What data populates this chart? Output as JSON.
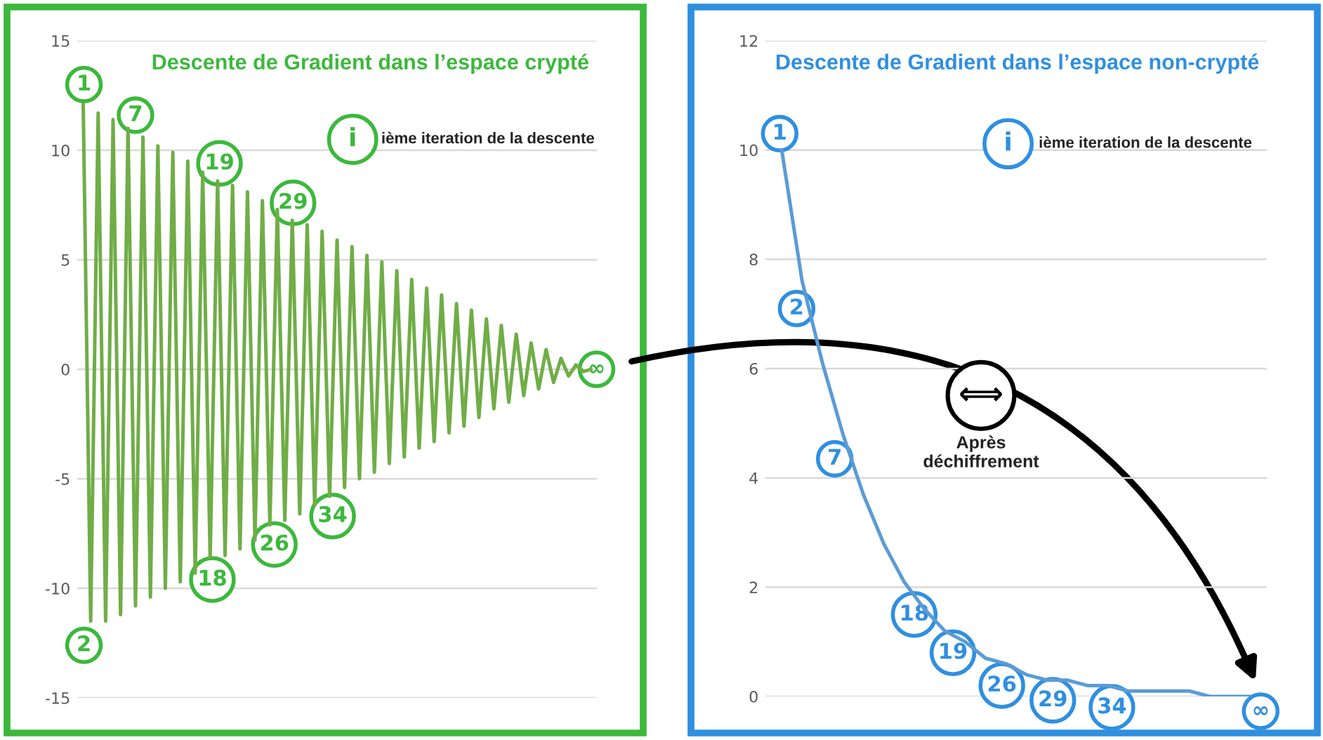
{
  "chart_data": [
    {
      "type": "line",
      "title": "Descente de Gradient dans l’espace crypté",
      "categories": [
        null,
        null,
        null,
        null,
        null,
        null,
        null,
        null,
        null,
        null,
        null,
        null,
        null,
        null,
        null,
        null,
        null,
        null,
        null,
        null,
        null,
        null,
        null,
        null,
        null,
        null,
        null,
        null,
        null,
        null,
        null,
        null,
        null,
        null,
        null,
        null,
        null,
        null,
        null,
        null,
        null,
        null,
        null,
        null,
        null,
        null,
        null,
        null,
        null,
        null,
        null,
        null,
        null,
        null,
        null,
        null,
        null,
        null,
        null,
        null,
        null,
        null,
        null,
        null,
        null,
        null,
        null,
        null,
        null
      ],
      "series": [
        {
          "color": "#70ad47",
          "values": [
            12.1,
            -11.5,
            11.7,
            -11.5,
            11.4,
            -11.2,
            11.0,
            -10.8,
            10.6,
            -10.4,
            10.2,
            -10.0,
            9.9,
            -9.7,
            9.5,
            -9.3,
            9.0,
            -8.6,
            8.6,
            -8.5,
            8.4,
            -8.2,
            8.1,
            -7.8,
            7.7,
            -7.1,
            7.3,
            -6.9,
            6.8,
            -6.6,
            6.6,
            -6.2,
            6.3,
            -5.8,
            5.9,
            -5.4,
            5.6,
            -5.0,
            5.2,
            -4.7,
            4.9,
            -4.3,
            4.5,
            -4.0,
            4.1,
            -3.6,
            3.7,
            -3.3,
            3.4,
            -2.9,
            3.0,
            -2.6,
            2.7,
            -2.2,
            2.3,
            -1.8,
            2.0,
            -1.5,
            1.6,
            -1.2,
            1.2,
            -0.9,
            0.9,
            -0.6,
            0.5,
            -0.3,
            0.2,
            -0.1,
            0
          ]
        }
      ],
      "ylim": [
        -15,
        15
      ],
      "yticks": [
        -15,
        -10,
        -5,
        0,
        5,
        10,
        15
      ],
      "grid": "y",
      "tick_labels": "y",
      "marker": "none",
      "line_style": "solid",
      "legend": false,
      "annotations": [
        "ième iteration de la descente",
        "i",
        "1",
        "2",
        "7",
        "18",
        "19",
        "26",
        "29",
        "34",
        "∞"
      ]
    },
    {
      "type": "line",
      "title": "Descente de Gradient dans l’espace non-crypté",
      "categories": [
        null,
        null,
        null,
        null,
        null,
        null,
        null,
        null,
        null,
        null,
        null,
        null,
        null,
        null,
        null,
        null,
        null,
        null,
        null,
        null,
        null,
        null,
        null,
        null
      ],
      "series": [
        {
          "color": "#5b9bd5",
          "values": [
            10,
            7.6,
            6.1,
            4.8,
            3.7,
            2.8,
            2.1,
            1.6,
            1.2,
            1.0,
            0.7,
            0.6,
            0.4,
            0.3,
            0.3,
            0.2,
            0.2,
            0.1,
            0.1,
            0.1,
            0.1,
            0,
            0,
            0
          ]
        }
      ],
      "ylim": [
        0,
        12
      ],
      "yticks": [
        0,
        2,
        4,
        6,
        8,
        10,
        12
      ],
      "grid": "y",
      "tick_labels": "y",
      "marker": "none",
      "line_style": "solid",
      "legend": false,
      "annotations": [
        "ième iteration de la descente",
        "i",
        "⟺",
        "Après\ndéchiffrement",
        "1",
        "2",
        "7",
        "18",
        "19",
        "26",
        "29",
        "34",
        "∞"
      ]
    }
  ]
}
